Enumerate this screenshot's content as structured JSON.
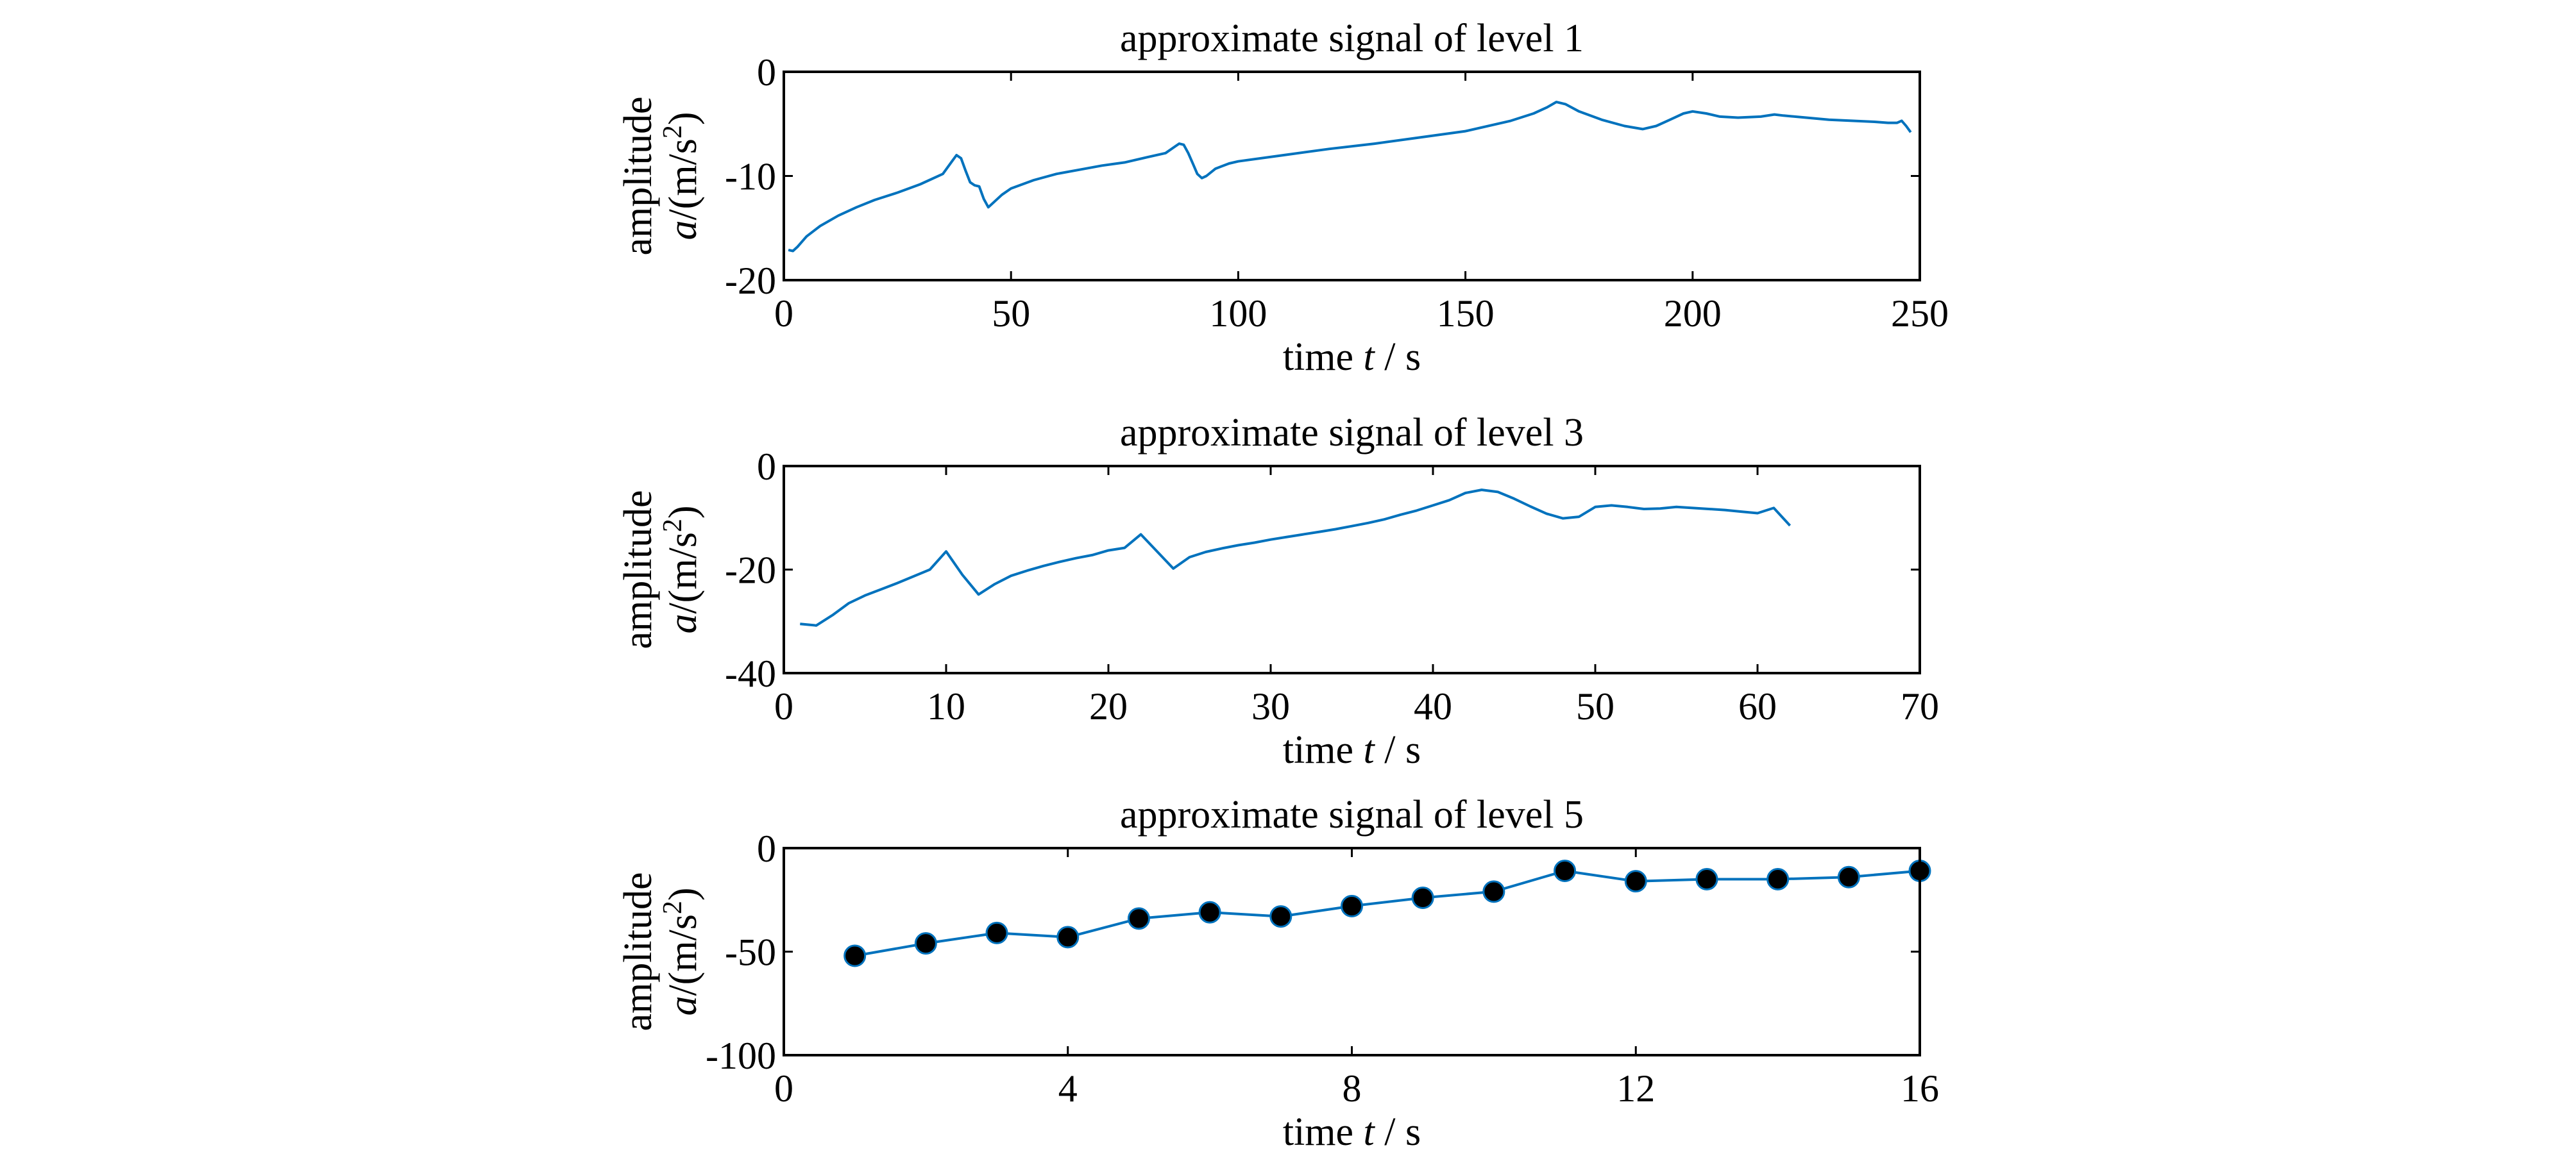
{
  "chart_data": [
    {
      "type": "line",
      "title": "approximate signal of level 1",
      "xlabel_pre": "time ",
      "xlabel_var": "t",
      "xlabel_post": " / s",
      "ylabel_line1": "amplitude",
      "ylabel_var": "a",
      "ylabel_unit_pre": "/(m/s",
      "ylabel_unit_sup": "2",
      "ylabel_unit_post": ")",
      "xlim": [
        0,
        250
      ],
      "ylim": [
        -20,
        0
      ],
      "xticks": [
        0,
        50,
        100,
        150,
        200,
        250
      ],
      "yticks": [
        0,
        -10,
        -20
      ],
      "markers": false,
      "color": "#0072BD",
      "series": [
        {
          "x": [
            1,
            2,
            3,
            5,
            8,
            12,
            16,
            20,
            25,
            30,
            35,
            37,
            38,
            39,
            40,
            41,
            42,
            43,
            44,
            45,
            46,
            48,
            50,
            55,
            60,
            65,
            70,
            75,
            80,
            84,
            86,
            87,
            88,
            89,
            90,
            91,
            92,
            93,
            95,
            98,
            100,
            110,
            120,
            130,
            140,
            150,
            160,
            165,
            168,
            170,
            172,
            175,
            180,
            185,
            189,
            192,
            195,
            198,
            200,
            203,
            206,
            210,
            215,
            218,
            220,
            225,
            230,
            235,
            240,
            243,
            245,
            246,
            247,
            248
          ],
          "y": [
            -17.1,
            -17.2,
            -16.8,
            -15.8,
            -14.8,
            -13.8,
            -13.0,
            -12.3,
            -11.6,
            -10.8,
            -9.8,
            -8.6,
            -8.0,
            -8.3,
            -9.5,
            -10.6,
            -10.9,
            -11.0,
            -12.2,
            -13.0,
            -12.6,
            -11.8,
            -11.2,
            -10.4,
            -9.8,
            -9.4,
            -9.0,
            -8.7,
            -8.2,
            -7.8,
            -7.2,
            -6.9,
            -7.0,
            -7.8,
            -8.8,
            -9.8,
            -10.2,
            -10.0,
            -9.3,
            -8.8,
            -8.6,
            -8.0,
            -7.4,
            -6.9,
            -6.3,
            -5.7,
            -4.7,
            -4.0,
            -3.4,
            -2.9,
            -3.1,
            -3.8,
            -4.6,
            -5.2,
            -5.5,
            -5.2,
            -4.6,
            -4.0,
            -3.8,
            -4.0,
            -4.3,
            -4.4,
            -4.3,
            -4.1,
            -4.2,
            -4.4,
            -4.6,
            -4.7,
            -4.8,
            -4.9,
            -4.9,
            -4.7,
            -5.2,
            -5.8
          ]
        }
      ]
    },
    {
      "type": "line",
      "title": "approximate signal of level 3",
      "xlabel_pre": "time ",
      "xlabel_var": "t",
      "xlabel_post": " / s",
      "ylabel_line1": "amplitude",
      "ylabel_var": "a",
      "ylabel_unit_pre": "/(m/s",
      "ylabel_unit_sup": "2",
      "ylabel_unit_post": ")",
      "xlim": [
        0,
        70
      ],
      "ylim": [
        -40,
        0
      ],
      "xticks": [
        0,
        10,
        20,
        30,
        40,
        50,
        60,
        70
      ],
      "yticks": [
        0,
        -20,
        -40
      ],
      "markers": false,
      "color": "#0072BD",
      "series": [
        {
          "x": [
            1,
            2,
            3,
            4,
            5,
            6,
            7,
            8,
            9,
            10,
            11,
            12,
            13,
            14,
            15,
            16,
            17,
            18,
            19,
            20,
            21,
            22,
            23,
            24,
            25,
            26,
            27,
            28,
            29,
            30,
            31,
            32,
            33,
            34,
            35,
            36,
            37,
            38,
            39,
            40,
            41,
            42,
            43,
            44,
            45,
            46,
            47,
            48,
            49,
            50,
            51,
            52,
            53,
            54,
            55,
            56,
            57,
            58,
            59,
            60,
            61,
            62
          ],
          "y": [
            -30.5,
            -30.8,
            -28.8,
            -26.5,
            -25.0,
            -23.8,
            -22.6,
            -21.3,
            -20.0,
            -16.5,
            -21.0,
            -24.8,
            -22.8,
            -21.2,
            -20.2,
            -19.3,
            -18.5,
            -17.8,
            -17.2,
            -16.3,
            -15.8,
            -13.2,
            -16.5,
            -19.8,
            -17.6,
            -16.6,
            -15.9,
            -15.3,
            -14.8,
            -14.2,
            -13.7,
            -13.2,
            -12.7,
            -12.2,
            -11.6,
            -11.0,
            -10.3,
            -9.4,
            -8.6,
            -7.6,
            -6.6,
            -5.2,
            -4.6,
            -5.0,
            -6.3,
            -7.8,
            -9.2,
            -10.1,
            -9.8,
            -7.9,
            -7.6,
            -7.9,
            -8.3,
            -8.2,
            -7.9,
            -8.1,
            -8.3,
            -8.5,
            -8.8,
            -9.1,
            -8.1,
            -11.5
          ]
        }
      ]
    },
    {
      "type": "line",
      "title": "approximate signal of level 5",
      "xlabel_pre": "time ",
      "xlabel_var": "t",
      "xlabel_post": " / s",
      "ylabel_line1": "amplitude",
      "ylabel_var": "a",
      "ylabel_unit_pre": "/(m/s",
      "ylabel_unit_sup": "2",
      "ylabel_unit_post": ")",
      "xlim": [
        0,
        16
      ],
      "ylim": [
        -100,
        0
      ],
      "xticks": [
        0,
        4,
        8,
        12,
        16
      ],
      "yticks": [
        0,
        -50,
        -100
      ],
      "markers": true,
      "color": "#0072BD",
      "marker_color": "#000000",
      "series": [
        {
          "x": [
            1,
            2,
            3,
            4,
            5,
            6,
            7,
            8,
            9,
            10,
            11,
            12,
            13,
            14,
            15,
            16
          ],
          "y": [
            -52,
            -46,
            -41,
            -43,
            -34,
            -31,
            -33,
            -28,
            -24,
            -21,
            -11,
            -16,
            -15,
            -15,
            -14,
            -11
          ]
        }
      ]
    }
  ]
}
